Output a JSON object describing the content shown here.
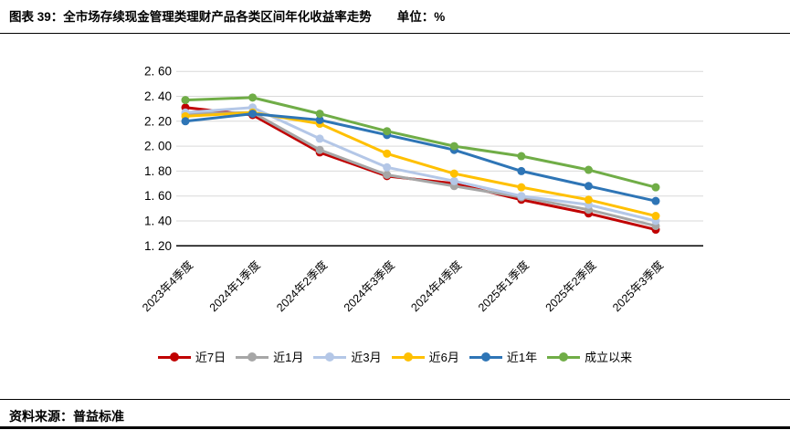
{
  "title": {
    "text": "图表 39：全市场存续现金管理类理财产品各类区间年化收益率走势",
    "unit": "单位：%"
  },
  "source": {
    "label": "资料来源：普益标准"
  },
  "chart_data": {
    "type": "line",
    "title": "全市场存续现金管理类理财产品各类区间年化收益率走势",
    "unit": "%",
    "x": [
      "2023年4季度",
      "2024年1季度",
      "2024年2季度",
      "2024年3季度",
      "2024年4季度",
      "2025年1季度",
      "2025年2季度",
      "2025年3季度"
    ],
    "series": [
      {
        "name": "近7日",
        "color": "#C00000",
        "values": [
          2.31,
          2.25,
          1.95,
          1.76,
          1.7,
          1.57,
          1.46,
          1.33
        ]
      },
      {
        "name": "近1月",
        "color": "#A6A6A6",
        "values": [
          2.26,
          2.27,
          1.97,
          1.77,
          1.68,
          1.59,
          1.49,
          1.36
        ]
      },
      {
        "name": "近3月",
        "color": "#B4C7E7",
        "values": [
          2.27,
          2.31,
          2.06,
          1.83,
          1.72,
          1.6,
          1.53,
          1.4
        ]
      },
      {
        "name": "近6月",
        "color": "#FFC000",
        "values": [
          2.24,
          2.27,
          2.18,
          1.94,
          1.78,
          1.67,
          1.57,
          1.44
        ]
      },
      {
        "name": "近1年",
        "color": "#2E75B6",
        "values": [
          2.2,
          2.26,
          2.21,
          2.09,
          1.97,
          1.8,
          1.68,
          1.56
        ]
      },
      {
        "name": "成立以来",
        "color": "#70AD47",
        "values": [
          2.37,
          2.39,
          2.26,
          2.12,
          2.0,
          1.92,
          1.81,
          1.67
        ]
      }
    ],
    "ylim": [
      1.2,
      2.6
    ],
    "ytick_step": 0.2,
    "ytick_labels": [
      "1. 20",
      "1. 40",
      "1. 60",
      "1. 80",
      "2. 00",
      "2. 20",
      "2. 40",
      "2. 60"
    ],
    "grid": true,
    "grid_color": "#D9D9D9",
    "axis_color": "#000000",
    "legend_position": "bottom",
    "marker": "circle"
  }
}
